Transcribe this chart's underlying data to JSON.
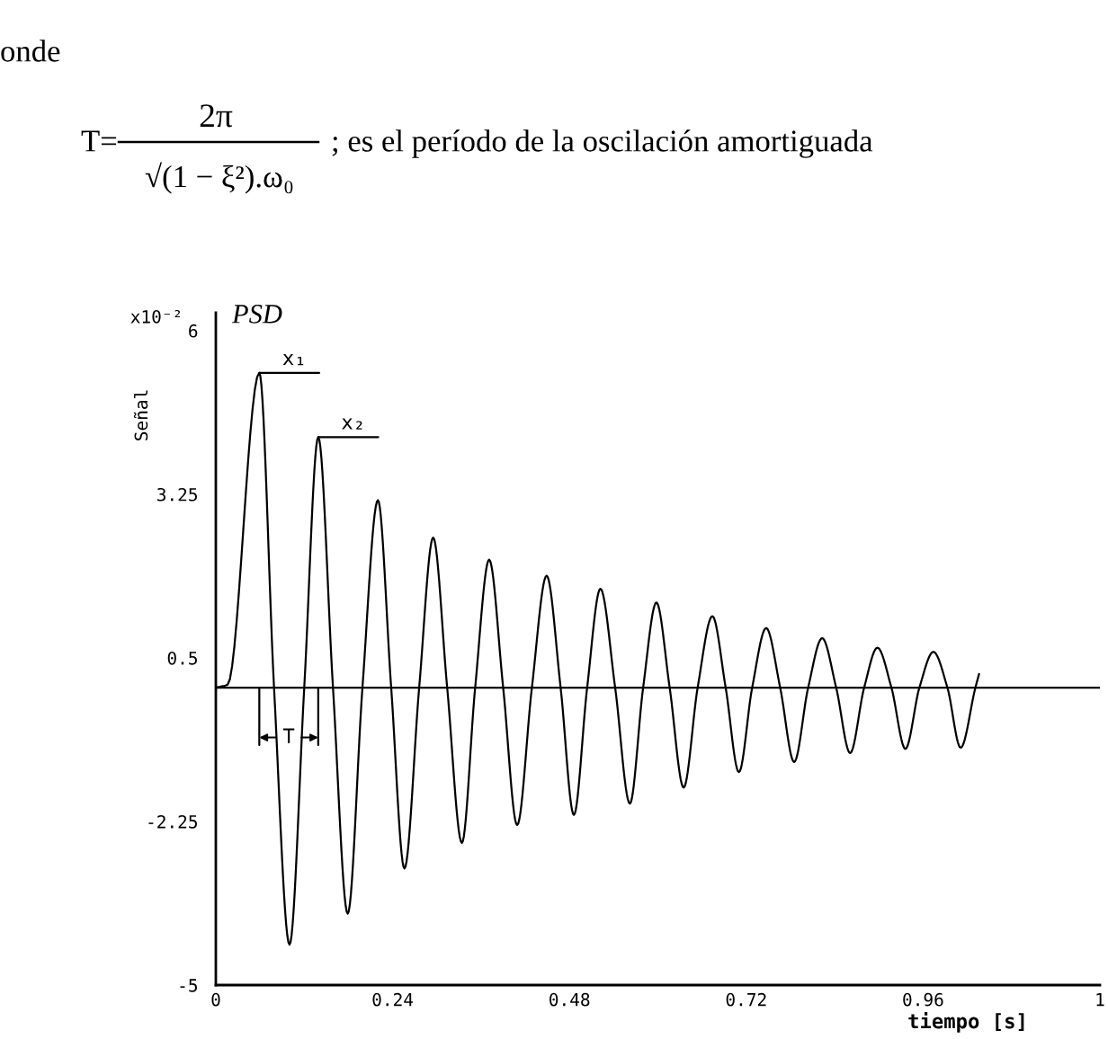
{
  "chart_data": {
    "type": "line",
    "title": "PSD",
    "ylabel": "Señal",
    "xlabel": "tiempo [s]",
    "annotations": [
      "onde",
      "T=",
      "2π",
      "√(1 − ξ²).ω₀",
      "; es el período de la oscilación amortiguada",
      "x10⁻²",
      "T",
      {
        "text": "x₁",
        "x": 0.059,
        "y": 5.29
      },
      {
        "text": "x₂",
        "x": 0.139,
        "y": 4.21
      }
    ],
    "xlim": [
      0,
      1.2
    ],
    "xticks": [
      0,
      0.24,
      0.48,
      0.72,
      0.96,
      {
        "value": 1.2,
        "label": "1"
      }
    ],
    "ylim": [
      -5,
      6.3
    ],
    "yticks": [
      -5,
      -2.25,
      0.5,
      3.25,
      6
    ],
    "ref_lines": [
      {
        "axis": "y",
        "value": 0,
        "color": "#000000"
      }
    ],
    "line_style": "solid",
    "marker": "none",
    "series": [
      {
        "color": "#000000",
        "x": [
          0,
          0.016,
          0.059,
          0.079,
          0.1,
          0.12,
          0.139,
          0.159,
          0.179,
          0.199,
          0.22,
          0.238,
          0.256,
          0.276,
          0.295,
          0.314,
          0.334,
          0.352,
          0.371,
          0.39,
          0.409,
          0.429,
          0.449,
          0.468,
          0.486,
          0.504,
          0.522,
          0.542,
          0.562,
          0.58,
          0.598,
          0.616,
          0.635,
          0.654,
          0.674,
          0.692,
          0.71,
          0.728,
          0.747,
          0.766,
          0.785,
          0.804,
          0.823,
          0.842,
          0.861,
          0.88,
          0.898,
          0.917,
          0.936,
          0.955,
          0.974,
          0.993,
          1.011,
          1.031,
          1.036
        ],
        "values": [
          0,
          0.05,
          5.29,
          0,
          -4.32,
          0,
          4.21,
          0,
          -3.8,
          0,
          3.15,
          0,
          -3.04,
          0,
          2.52,
          0,
          -2.61,
          0,
          2.15,
          0,
          -2.31,
          0,
          1.88,
          0,
          -2.14,
          0,
          1.66,
          0,
          -1.95,
          0,
          1.43,
          0,
          -1.68,
          0,
          1.2,
          0,
          -1.42,
          0,
          1.0,
          0,
          -1.25,
          0,
          0.83,
          0,
          -1.1,
          0,
          0.67,
          0,
          -1.03,
          0,
          0.6,
          0,
          -1.01,
          0,
          0.23
        ]
      }
    ]
  }
}
